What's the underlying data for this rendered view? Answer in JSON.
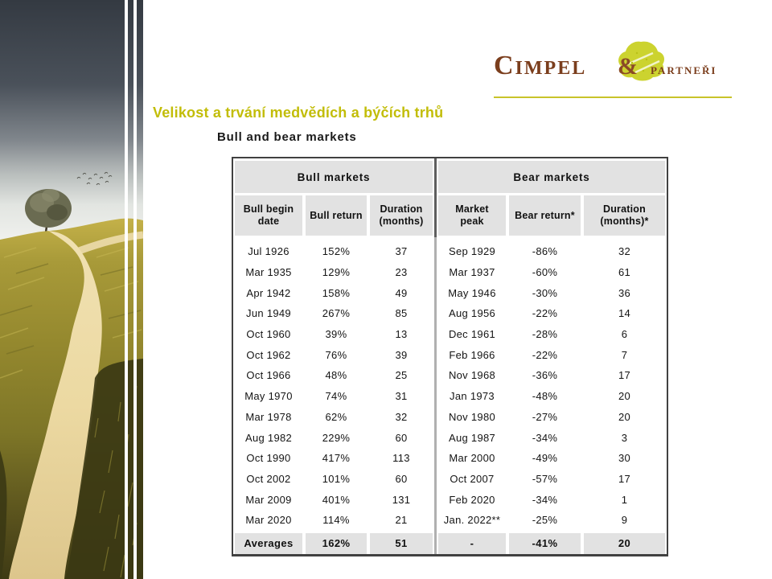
{
  "slide": {
    "title": "Velikost a trvání medvědích a býčích trhů"
  },
  "logo": {
    "name_main": "Cimpel",
    "ampersand": "&",
    "name_sub": "partneři"
  },
  "icons": {
    "logo_tree": "tree-blob-icon"
  },
  "table": {
    "title": "Bull and bear markets",
    "group_headers": [
      "Bull markets",
      "Bear markets"
    ],
    "col_headers": [
      "Bull begin\ndate",
      "Bull return",
      "Duration\n(months)",
      "Market\npeak",
      "Bear return*",
      "Duration\n(months)*"
    ],
    "rows": [
      [
        "Jul 1926",
        "152%",
        "37",
        "Sep 1929",
        "-86%",
        "32"
      ],
      [
        "Mar 1935",
        "129%",
        "23",
        "Mar 1937",
        "-60%",
        "61"
      ],
      [
        "Apr 1942",
        "158%",
        "49",
        "May 1946",
        "-30%",
        "36"
      ],
      [
        "Jun 1949",
        "267%",
        "85",
        "Aug 1956",
        "-22%",
        "14"
      ],
      [
        "Oct 1960",
        "39%",
        "13",
        "Dec 1961",
        "-28%",
        "6"
      ],
      [
        "Oct 1962",
        "76%",
        "39",
        "Feb 1966",
        "-22%",
        "7"
      ],
      [
        "Oct 1966",
        "48%",
        "25",
        "Nov 1968",
        "-36%",
        "17"
      ],
      [
        "May 1970",
        "74%",
        "31",
        "Jan 1973",
        "-48%",
        "20"
      ],
      [
        "Mar 1978",
        "62%",
        "32",
        "Nov 1980",
        "-27%",
        "20"
      ],
      [
        "Aug 1982",
        "229%",
        "60",
        "Aug 1987",
        "-34%",
        "3"
      ],
      [
        "Oct 1990",
        "417%",
        "113",
        "Mar 2000",
        "-49%",
        "30"
      ],
      [
        "Oct 2002",
        "101%",
        "60",
        "Oct 2007",
        "-57%",
        "17"
      ],
      [
        "Mar 2009",
        "401%",
        "131",
        "Feb 2020",
        "-34%",
        "1"
      ],
      [
        "Mar 2020",
        "114%",
        "21",
        "Jan. 2022**",
        "-25%",
        "9"
      ]
    ],
    "averages": [
      "Averages",
      "162%",
      "51",
      "-",
      "-41%",
      "20"
    ]
  },
  "colors": {
    "title_gold": "#c2bd08",
    "logo_brown": "#7b3e1d",
    "logo_tree_green": "#ccd32f",
    "logo_underline": "#c8c32a",
    "table_header_gray": "#e2e2e2",
    "table_border": "#414141"
  }
}
